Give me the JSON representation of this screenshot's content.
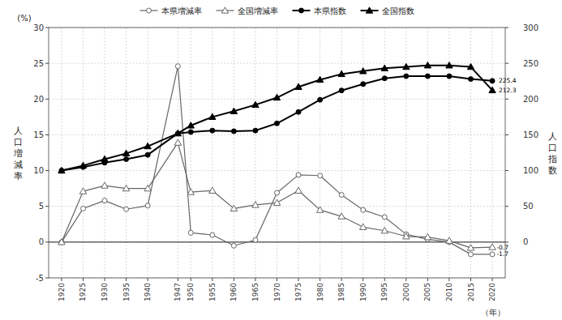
{
  "chart_data": {
    "type": "line",
    "x": [
      1920,
      1925,
      1930,
      1935,
      1940,
      1947,
      1950,
      1955,
      1960,
      1965,
      1970,
      1975,
      1980,
      1985,
      1990,
      1995,
      2000,
      2005,
      2010,
      2015,
      2020
    ],
    "series": [
      {
        "name": "本県増減率",
        "color": "#666666",
        "marker": "circle",
        "axis": "y",
        "values": [
          0.0,
          4.7,
          5.8,
          4.6,
          5.1,
          24.6,
          1.3,
          1.0,
          -0.5,
          0.3,
          6.9,
          9.4,
          9.3,
          6.6,
          4.5,
          3.5,
          1.1,
          0.4,
          0.0,
          -1.7,
          -1.7
        ]
      },
      {
        "name": "全国増減率",
        "color": "#666666",
        "marker": "triangle",
        "axis": "y",
        "values": [
          0.0,
          7.1,
          7.9,
          7.5,
          7.5,
          13.9,
          7.0,
          7.2,
          4.7,
          5.2,
          5.5,
          7.2,
          4.5,
          3.6,
          2.1,
          1.6,
          0.8,
          0.7,
          0.2,
          -0.8,
          -0.7
        ]
      },
      {
        "name": "本県指数",
        "color": "#000000",
        "marker": "circle",
        "axis": "y2",
        "values": [
          100,
          105,
          111,
          116,
          122,
          152,
          154,
          156,
          155,
          156,
          166,
          182,
          199,
          212,
          221,
          229,
          232,
          232,
          232,
          228,
          225.4
        ]
      },
      {
        "name": "全国指数",
        "color": "#000000",
        "marker": "triangle",
        "axis": "y2",
        "values": [
          100,
          107,
          116,
          124,
          134,
          152,
          163,
          175,
          183,
          192,
          202,
          217,
          227,
          235,
          239,
          243,
          245,
          247,
          247,
          245,
          212.3
        ]
      }
    ],
    "xlim": [
      1917,
      2023
    ],
    "xticks": [
      1920,
      1925,
      1930,
      1935,
      1940,
      1947,
      1950,
      1955,
      1960,
      1965,
      1970,
      1975,
      1980,
      1985,
      1990,
      1995,
      2000,
      2005,
      2010,
      2015,
      2020
    ],
    "ylim": [
      -5,
      30
    ],
    "yticks": [
      -5,
      0,
      5,
      10,
      15,
      20,
      25,
      30
    ],
    "y2lim": [
      -50,
      300
    ],
    "y2ticks": [
      0,
      50,
      100,
      150,
      200,
      250,
      300
    ],
    "y_label": "人口増減率",
    "y_unit": "(%)",
    "y2_label": "人口指数",
    "x_label": "（年）",
    "annotations": [
      {
        "text": "-1.7",
        "x": 2021.0,
        "y": -1.7,
        "axis": "y"
      },
      {
        "text": "-0.7",
        "x": 2021.0,
        "y": -0.7,
        "axis": "y"
      },
      {
        "text": "225.4",
        "x": 2021.5,
        "y": 225.4,
        "axis": "y2"
      },
      {
        "text": "212.3",
        "x": 2021.5,
        "y": 212.3,
        "axis": "y2"
      }
    ],
    "grid": true,
    "legend": "upper center"
  }
}
